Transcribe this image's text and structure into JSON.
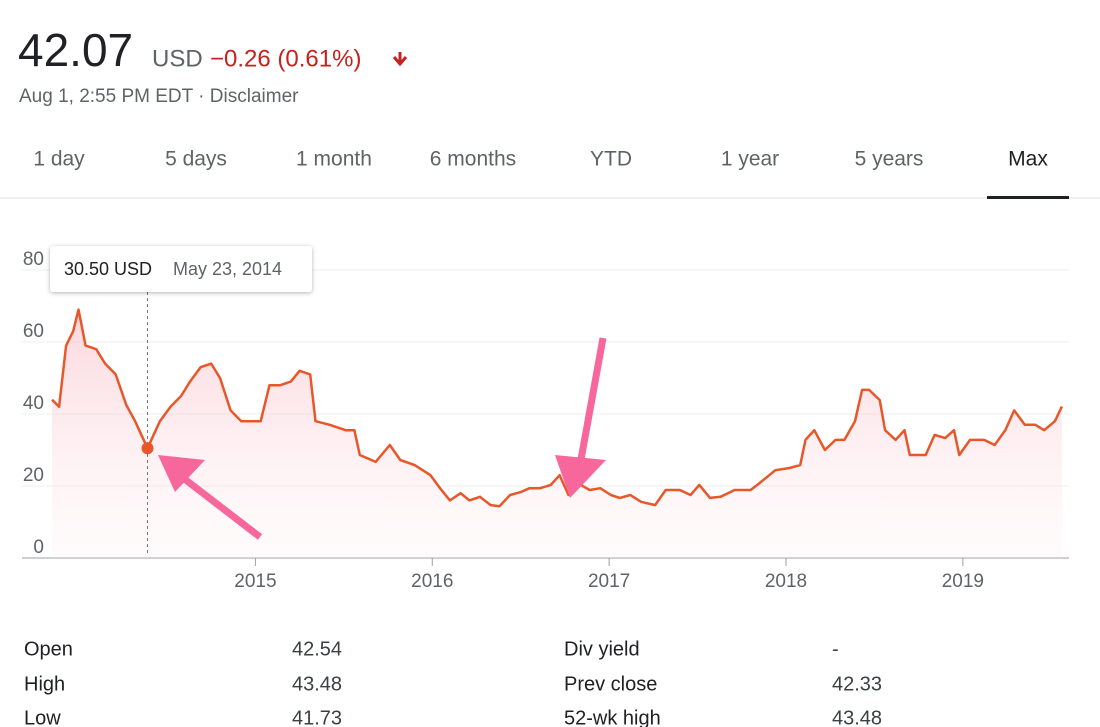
{
  "header": {
    "price": "42.07",
    "currency": "USD",
    "change": "−0.26 (0.61%)",
    "timestamp": "Aug 1, 2:55 PM EDT · Disclaimer"
  },
  "tabs": {
    "items": [
      "1 day",
      "5 days",
      "1 month",
      "6 months",
      "YTD",
      "1 year",
      "5 years",
      "Max"
    ],
    "active": 7
  },
  "chart_data": {
    "type": "line",
    "color": "#e8572a",
    "grid": true,
    "xlim": [
      2013.85,
      2019.6
    ],
    "xticks": [
      2015,
      2016,
      2017,
      2018,
      2019
    ],
    "ylim": [
      0,
      80
    ],
    "yticks": [
      0,
      20,
      40,
      60,
      80
    ],
    "x": [
      2013.85,
      2013.89,
      2013.93,
      2013.97,
      2014.0,
      2014.04,
      2014.1,
      2014.15,
      2014.21,
      2014.27,
      2014.32,
      2014.39,
      2014.46,
      2014.52,
      2014.58,
      2014.63,
      2014.69,
      2014.75,
      2014.8,
      2014.86,
      2014.92,
      2014.97,
      2015.03,
      2015.08,
      2015.14,
      2015.2,
      2015.25,
      2015.31,
      2015.34,
      2015.42,
      2015.51,
      2015.56,
      2015.59,
      2015.68,
      2015.76,
      2015.82,
      2015.9,
      2015.99,
      2016.05,
      2016.1,
      2016.16,
      2016.21,
      2016.27,
      2016.33,
      2016.38,
      2016.44,
      2016.5,
      2016.55,
      2016.61,
      2016.67,
      2016.72,
      2016.77,
      2016.84,
      2016.89,
      2016.95,
      2017.01,
      2017.06,
      2017.12,
      2017.18,
      2017.26,
      2017.32,
      2017.4,
      2017.46,
      2017.51,
      2017.57,
      2017.63,
      2017.71,
      2017.8,
      2017.85,
      2017.94,
      2018.02,
      2018.08,
      2018.11,
      2018.16,
      2018.22,
      2018.28,
      2018.33,
      2018.39,
      2018.43,
      2018.47,
      2018.53,
      2018.56,
      2018.62,
      2018.67,
      2018.7,
      2018.79,
      2018.84,
      2018.9,
      2018.95,
      2018.98,
      2019.04,
      2019.12,
      2019.18,
      2019.24,
      2019.29,
      2019.35,
      2019.41,
      2019.46,
      2019.52,
      2019.56
    ],
    "values": [
      44,
      42,
      59,
      63,
      69,
      59,
      58,
      54,
      51,
      42.5,
      38,
      30.5,
      38,
      42,
      45,
      49,
      53,
      54,
      50,
      41,
      38,
      38,
      38,
      48,
      48,
      49,
      52,
      51,
      38,
      37,
      35.5,
      35.5,
      28.6,
      26.7,
      31.4,
      27.2,
      25.8,
      23,
      19,
      16,
      18,
      16,
      17,
      14.7,
      14.4,
      17.5,
      18.3,
      19.4,
      19.4,
      20.3,
      23,
      17.5,
      20.3,
      18.9,
      19.4,
      17.5,
      16.7,
      17.5,
      15.6,
      14.7,
      18.9,
      18.9,
      17.5,
      20.3,
      16.7,
      17,
      18.9,
      18.9,
      20.8,
      24.4,
      25,
      25.8,
      32.8,
      35.5,
      30,
      32.8,
      32.8,
      38,
      46.7,
      46.7,
      43.9,
      35.5,
      32.8,
      35.5,
      28.6,
      28.6,
      34.2,
      33.3,
      35.5,
      28.6,
      32.8,
      32.8,
      31.4,
      35.5,
      41,
      37,
      37,
      35.5,
      38,
      42.07
    ],
    "highlight": {
      "x": 2014.39,
      "value": 30.5,
      "label": "30.50 USD",
      "date": "May 23, 2014"
    }
  },
  "stats": {
    "rows": [
      [
        "Open",
        "42.54",
        "Div yield",
        "-"
      ],
      [
        "High",
        "43.48",
        "Prev close",
        "42.33"
      ],
      [
        "Low",
        "41.73",
        "52-wk high",
        "43.48"
      ]
    ]
  }
}
